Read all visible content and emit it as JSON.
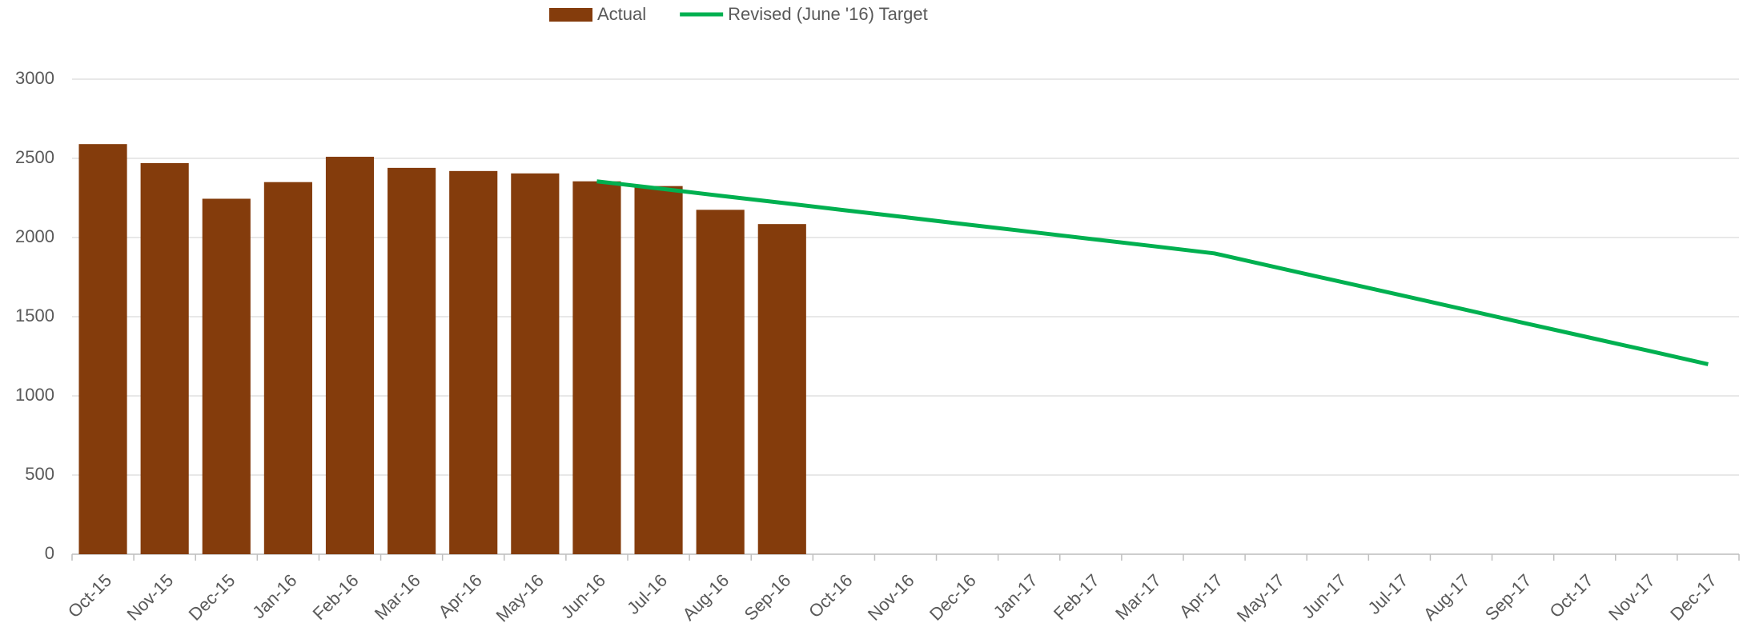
{
  "chart_data": {
    "type": "bar-line",
    "categories": [
      "Oct-15",
      "Nov-15",
      "Dec-15",
      "Jan-16",
      "Feb-16",
      "Mar-16",
      "Apr-16",
      "May-16",
      "Jun-16",
      "Jul-16",
      "Aug-16",
      "Sep-16",
      "Oct-16",
      "Nov-16",
      "Dec-16",
      "Jan-17",
      "Feb-17",
      "Mar-17",
      "Apr-17",
      "May-17",
      "Jun-17",
      "Jul-17",
      "Aug-17",
      "Sep-17",
      "Oct-17",
      "Nov-17",
      "Dec-17"
    ],
    "series": [
      {
        "name": "Actual",
        "type": "bar",
        "color": "#843c0c",
        "values": [
          2590,
          2470,
          2245,
          2350,
          2510,
          2440,
          2420,
          2405,
          2355,
          2325,
          2175,
          2085,
          null,
          null,
          null,
          null,
          null,
          null,
          null,
          null,
          null,
          null,
          null,
          null,
          null,
          null,
          null
        ]
      },
      {
        "name": "Revised (June '16) Target",
        "type": "line",
        "color": "#00b050",
        "values": [
          null,
          null,
          null,
          null,
          null,
          null,
          null,
          null,
          2355,
          2310,
          2264,
          2219,
          2173,
          2128,
          2082,
          2037,
          1991,
          1946,
          1900,
          1812,
          1725,
          1638,
          1550,
          1462,
          1375,
          1288,
          1200
        ]
      }
    ],
    "ylim": [
      0,
      3000
    ],
    "yticks": [
      0,
      500,
      1000,
      1500,
      2000,
      2500,
      3000
    ],
    "grid": true,
    "legend": "top"
  }
}
